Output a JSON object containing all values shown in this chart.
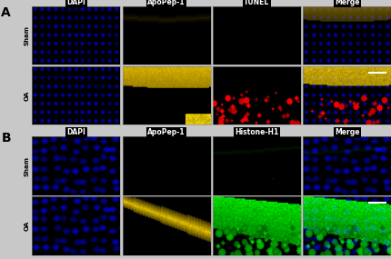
{
  "panel_A_label": "A",
  "panel_B_label": "B",
  "row_labels_A": [
    "Sham",
    "OA"
  ],
  "row_labels_B": [
    "Sham",
    "OA"
  ],
  "col_labels_A": [
    "DAPI",
    "ApoPep-1",
    "TUNEL",
    "Merge"
  ],
  "col_labels_B": [
    "DAPI",
    "ApoPep-1",
    "Histone-H1",
    "Merge"
  ],
  "bg_color": "#c8c8c8",
  "panel_label_color": "#000000",
  "col_label_color": "#ffffff",
  "row_label_color": "#000000",
  "figsize": [
    4.31,
    2.85
  ],
  "dpi": 100
}
